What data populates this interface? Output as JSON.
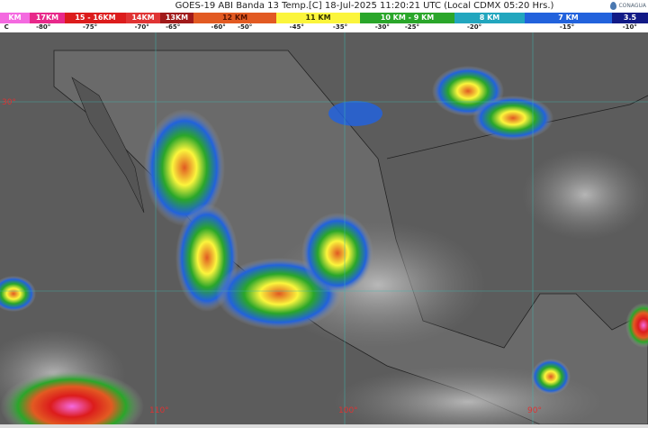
{
  "header": {
    "title": "GOES-19 ABI Banda 13 Temp.[C] 18-Jul-2025 11:20:21 UTC (Local CDMX  05:20 Hrs.)",
    "logo": "CONAGUA"
  },
  "legend": {
    "segments": [
      {
        "label": "KM",
        "color": "#f46ae0",
        "w": 33
      },
      {
        "label": "17KM",
        "color": "#e8288a",
        "w": 39
      },
      {
        "label": "15 - 16KM",
        "color": "#dc1c1c",
        "w": 68
      },
      {
        "label": "14KM",
        "color": "#e03434",
        "w": 38
      },
      {
        "label": "13KM",
        "color": "#a01a1a",
        "w": 37
      },
      {
        "label": "12 KM",
        "color": "#e25a22",
        "w": 92,
        "text": "#551100"
      },
      {
        "label": "11 KM",
        "color": "#fbf53c",
        "w": 93,
        "text": "#333300"
      },
      {
        "label": "10 KM - 9 KM",
        "color": "#2aa62a",
        "w": 105
      },
      {
        "label": "8 KM",
        "color": "#22a6be",
        "w": 78
      },
      {
        "label": "7 KM",
        "color": "#2262dc",
        "w": 97
      },
      {
        "label": "3.5",
        "color": "#121a86",
        "w": 40
      }
    ],
    "temps": [
      {
        "t": "C",
        "p": 1
      },
      {
        "t": "-80°",
        "p": 6.7
      },
      {
        "t": "-75°",
        "p": 13.9
      },
      {
        "t": "-70°",
        "p": 21.9
      },
      {
        "t": "-65°",
        "p": 26.7
      },
      {
        "t": "-60°",
        "p": 33.7
      },
      {
        "t": "-50°",
        "p": 37.8
      },
      {
        "t": "-45°",
        "p": 45.8
      },
      {
        "t": "-35°",
        "p": 52.5
      },
      {
        "t": "-30°",
        "p": 59
      },
      {
        "t": "-25°",
        "p": 63.6
      },
      {
        "t": "-20°",
        "p": 73.2
      },
      {
        "t": "-15°",
        "p": 87.5
      },
      {
        "t": "-10°",
        "p": 97.2
      }
    ]
  },
  "map": {
    "lat_labels": [
      "30°"
    ],
    "lon_labels": [
      "110°",
      "100°",
      "90°"
    ],
    "grid_color": "#3fb8b0"
  }
}
